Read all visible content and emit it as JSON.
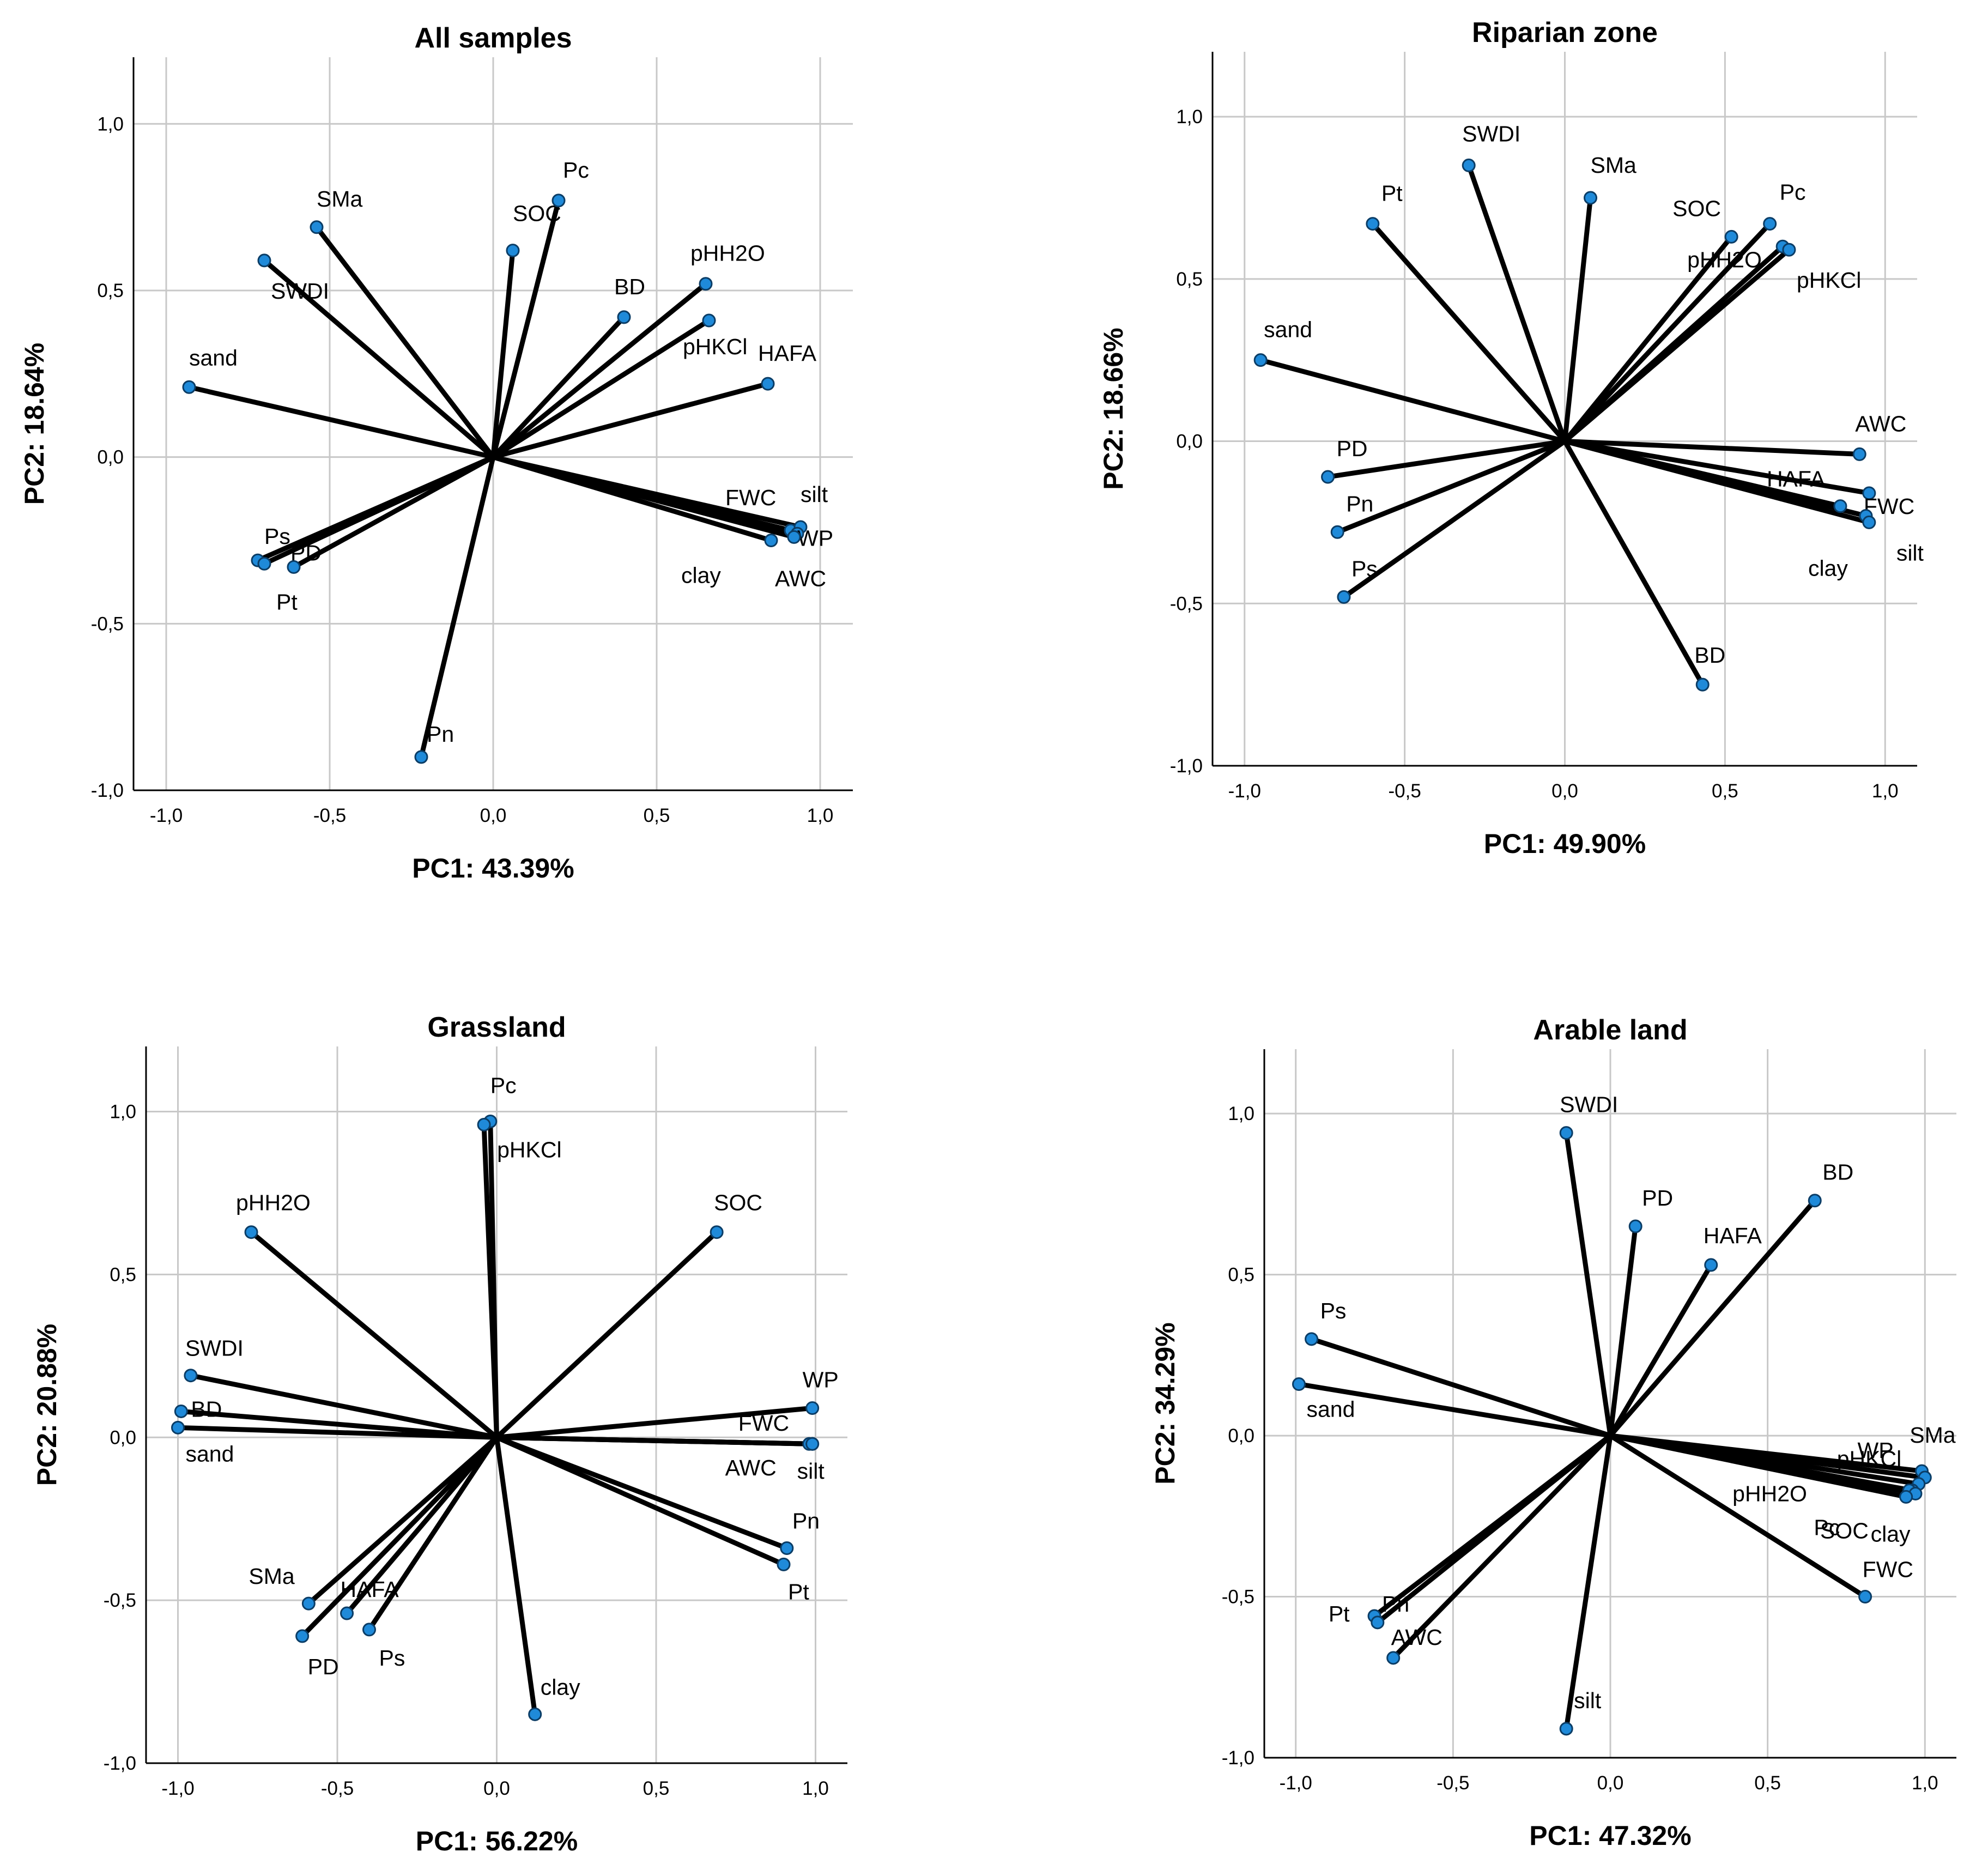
{
  "colors": {
    "grid": "#c8c8c8",
    "frame": "#000000",
    "vector": "#000000",
    "marker_fill": "#1f8ad9",
    "marker_stroke": "#0b3d66",
    "background": "#ffffff"
  },
  "chart_data": [
    {
      "type": "scatter",
      "subtype": "pca-loading-plot",
      "title": "All samples",
      "xlabel": "PC1: 43.39%",
      "ylabel": "PC2: 18.64%",
      "xlim": [
        -1.1,
        1.1
      ],
      "ylim": [
        -1.0,
        1.2
      ],
      "xticks": [
        -1.0,
        -0.5,
        0.0,
        0.5,
        1.0
      ],
      "xtick_labels": [
        "-1,0",
        "-0,5",
        "0,0",
        "0,5",
        "1,0"
      ],
      "yticks": [
        -1.0,
        -0.5,
        0.0,
        0.5,
        1.0
      ],
      "ytick_labels": [
        "-1,0",
        "-0,5",
        "0,0",
        "0,5",
        "1,0"
      ],
      "grid": true,
      "points": [
        {
          "label": "SMa",
          "x": -0.54,
          "y": 0.69
        },
        {
          "label": "SWDI",
          "x": -0.7,
          "y": 0.59
        },
        {
          "label": "sand",
          "x": -0.93,
          "y": 0.21
        },
        {
          "label": "SOC",
          "x": 0.06,
          "y": 0.62
        },
        {
          "label": "Pc",
          "x": 0.2,
          "y": 0.77
        },
        {
          "label": "BD",
          "x": 0.4,
          "y": 0.42
        },
        {
          "label": "pHH2O",
          "x": 0.65,
          "y": 0.52
        },
        {
          "label": "pHKCl",
          "x": 0.66,
          "y": 0.41
        },
        {
          "label": "HAFA",
          "x": 0.84,
          "y": 0.22
        },
        {
          "label": "FWC",
          "x": 0.91,
          "y": -0.22
        },
        {
          "label": "silt",
          "x": 0.94,
          "y": -0.21
        },
        {
          "label": "WP",
          "x": 0.93,
          "y": -0.23
        },
        {
          "label": "clay",
          "x": 0.85,
          "y": -0.25
        },
        {
          "label": "AWC",
          "x": 0.92,
          "y": -0.24
        },
        {
          "label": "Ps",
          "x": -0.72,
          "y": -0.31
        },
        {
          "label": "PD",
          "x": -0.7,
          "y": -0.32
        },
        {
          "label": "Pt",
          "x": -0.61,
          "y": -0.33
        },
        {
          "label": "Pn",
          "x": -0.22,
          "y": -0.9
        }
      ]
    },
    {
      "type": "scatter",
      "subtype": "pca-loading-plot",
      "title": "Riparian zone",
      "xlabel": "PC1: 49.90%",
      "ylabel": "PC2: 18.66%",
      "xlim": [
        -1.1,
        1.1
      ],
      "ylim": [
        -1.0,
        1.2
      ],
      "xticks": [
        -1.0,
        -0.5,
        0.0,
        0.5,
        1.0
      ],
      "xtick_labels": [
        "-1,0",
        "-0,5",
        "0,0",
        "0,5",
        "1,0"
      ],
      "yticks": [
        -1.0,
        -0.5,
        0.0,
        0.5,
        1.0
      ],
      "ytick_labels": [
        "-1,0",
        "-0,5",
        "0,0",
        "0,5",
        "1,0"
      ],
      "grid": true,
      "points": [
        {
          "label": "SWDI",
          "x": -0.3,
          "y": 0.85
        },
        {
          "label": "Pt",
          "x": -0.6,
          "y": 0.67
        },
        {
          "label": "SMa",
          "x": 0.08,
          "y": 0.75
        },
        {
          "label": "SOC",
          "x": 0.52,
          "y": 0.63
        },
        {
          "label": "Pc",
          "x": 0.64,
          "y": 0.67
        },
        {
          "label": "pHH2O",
          "x": 0.68,
          "y": 0.6
        },
        {
          "label": "pHKCl",
          "x": 0.7,
          "y": 0.59
        },
        {
          "label": "sand",
          "x": -0.95,
          "y": 0.25
        },
        {
          "label": "AWC",
          "x": 0.92,
          "y": -0.04
        },
        {
          "label": "FWC",
          "x": 0.95,
          "y": -0.16
        },
        {
          "label": "HAFA",
          "x": 0.86,
          "y": -0.2
        },
        {
          "label": "clay",
          "x": 0.94,
          "y": -0.23
        },
        {
          "label": "silt",
          "x": 0.95,
          "y": -0.25
        },
        {
          "label": "PD",
          "x": -0.74,
          "y": -0.11
        },
        {
          "label": "Pn",
          "x": -0.71,
          "y": -0.28
        },
        {
          "label": "Ps",
          "x": -0.69,
          "y": -0.48
        },
        {
          "label": "BD",
          "x": 0.43,
          "y": -0.75
        }
      ]
    },
    {
      "type": "scatter",
      "subtype": "pca-loading-plot",
      "title": "Grassland",
      "xlabel": "PC1: 56.22%",
      "ylabel": "PC2: 20.88%",
      "xlim": [
        -1.1,
        1.1
      ],
      "ylim": [
        -1.0,
        1.2
      ],
      "xticks": [
        -1.0,
        -0.5,
        0.0,
        0.5,
        1.0
      ],
      "xtick_labels": [
        "-1,0",
        "-0,5",
        "0,0",
        "0,5",
        "1,0"
      ],
      "yticks": [
        -1.0,
        -0.5,
        0.0,
        0.5,
        1.0
      ],
      "ytick_labels": [
        "-1,0",
        "-0,5",
        "0,0",
        "0,5",
        "1,0"
      ],
      "grid": true,
      "points": [
        {
          "label": "Pc",
          "x": -0.02,
          "y": 0.97
        },
        {
          "label": "pHKCl",
          "x": -0.04,
          "y": 0.96
        },
        {
          "label": "SOC",
          "x": 0.69,
          "y": 0.63
        },
        {
          "label": "pHH2O",
          "x": -0.77,
          "y": 0.63
        },
        {
          "label": "SWDI",
          "x": -0.96,
          "y": 0.19
        },
        {
          "label": "BD",
          "x": -0.99,
          "y": 0.08
        },
        {
          "label": "sand",
          "x": -1.0,
          "y": 0.03
        },
        {
          "label": "WP",
          "x": 0.99,
          "y": 0.09
        },
        {
          "label": "FWC",
          "x": 0.98,
          "y": -0.02
        },
        {
          "label": "AWC",
          "x": 0.99,
          "y": -0.02
        },
        {
          "label": "silt",
          "x": 0.99,
          "y": -0.02
        },
        {
          "label": "Pn",
          "x": 0.91,
          "y": -0.34
        },
        {
          "label": "Pt",
          "x": 0.9,
          "y": -0.39
        },
        {
          "label": "SMa",
          "x": -0.59,
          "y": -0.51
        },
        {
          "label": "HAFA",
          "x": -0.47,
          "y": -0.54
        },
        {
          "label": "PD",
          "x": -0.61,
          "y": -0.61
        },
        {
          "label": "Ps",
          "x": -0.4,
          "y": -0.59
        },
        {
          "label": "clay",
          "x": 0.12,
          "y": -0.85
        }
      ]
    },
    {
      "type": "scatter",
      "subtype": "pca-loading-plot",
      "title": "Arable land",
      "xlabel": "PC1: 47.32%",
      "ylabel": "PC2: 34.29%",
      "xlim": [
        -1.1,
        1.1
      ],
      "ylim": [
        -1.0,
        1.2
      ],
      "xticks": [
        -1.0,
        -0.5,
        0.0,
        0.5,
        1.0
      ],
      "xtick_labels": [
        "-1,0",
        "-0,5",
        "0,0",
        "0,5",
        "1,0"
      ],
      "yticks": [
        -1.0,
        -0.5,
        0.0,
        0.5,
        1.0
      ],
      "ytick_labels": [
        "-1,0",
        "-0,5",
        "0,0",
        "0,5",
        "1,0"
      ],
      "grid": true,
      "points": [
        {
          "label": "SWDI",
          "x": -0.14,
          "y": 0.94
        },
        {
          "label": "PD",
          "x": 0.08,
          "y": 0.65
        },
        {
          "label": "HAFA",
          "x": 0.32,
          "y": 0.53
        },
        {
          "label": "BD",
          "x": 0.65,
          "y": 0.73
        },
        {
          "label": "Ps",
          "x": -0.95,
          "y": 0.3
        },
        {
          "label": "sand",
          "x": -0.99,
          "y": 0.16
        },
        {
          "label": "WP",
          "x": 0.99,
          "y": -0.11
        },
        {
          "label": "SMa",
          "x": 1.0,
          "y": -0.13
        },
        {
          "label": "pHKCl",
          "x": 0.98,
          "y": -0.15
        },
        {
          "label": "pHH2O",
          "x": 0.96,
          "y": -0.17
        },
        {
          "label": "Pc",
          "x": 0.95,
          "y": -0.17
        },
        {
          "label": "SOC",
          "x": 0.97,
          "y": -0.18
        },
        {
          "label": "clay",
          "x": 0.94,
          "y": -0.19
        },
        {
          "label": "FWC",
          "x": 0.81,
          "y": -0.5
        },
        {
          "label": "Pn",
          "x": -0.75,
          "y": -0.56
        },
        {
          "label": "AWC",
          "x": -0.69,
          "y": -0.69
        },
        {
          "label": "Pt",
          "x": -0.74,
          "y": -0.58
        },
        {
          "label": "silt",
          "x": -0.14,
          "y": -0.91
        }
      ]
    }
  ]
}
